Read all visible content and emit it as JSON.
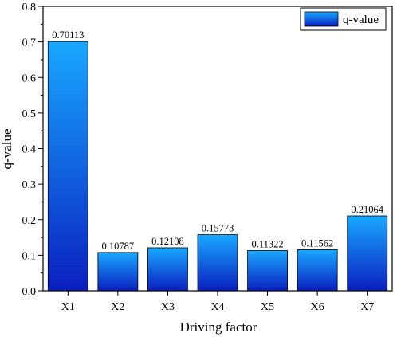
{
  "chart_data": {
    "type": "bar",
    "xlabel": "Driving factor",
    "ylabel": "q-value",
    "categories": [
      "X1",
      "X2",
      "X3",
      "X4",
      "X5",
      "X6",
      "X7"
    ],
    "series": [
      {
        "name": "q-value",
        "values": [
          0.70113,
          0.10787,
          0.12108,
          0.15773,
          0.11322,
          0.11562,
          0.21064
        ],
        "data_labels": [
          "0.70113",
          "0.10787",
          "0.12108",
          "0.15773",
          "0.11322",
          "0.11562",
          "0.21064"
        ]
      }
    ],
    "ylim": [
      0,
      0.8
    ],
    "yticks": [
      0.0,
      0.1,
      0.2,
      0.3,
      0.4,
      0.5,
      0.6,
      0.7,
      0.8
    ],
    "ytick_labels": [
      "0.0",
      "0.1",
      "0.2",
      "0.3",
      "0.4",
      "0.5",
      "0.6",
      "0.7",
      "0.8"
    ],
    "grid": false,
    "legend": {
      "position": "top-right"
    },
    "colors": {
      "bar_top": "#19a8ff",
      "bar_bottom": "#0a1fbf",
      "axis": "#000000"
    }
  }
}
